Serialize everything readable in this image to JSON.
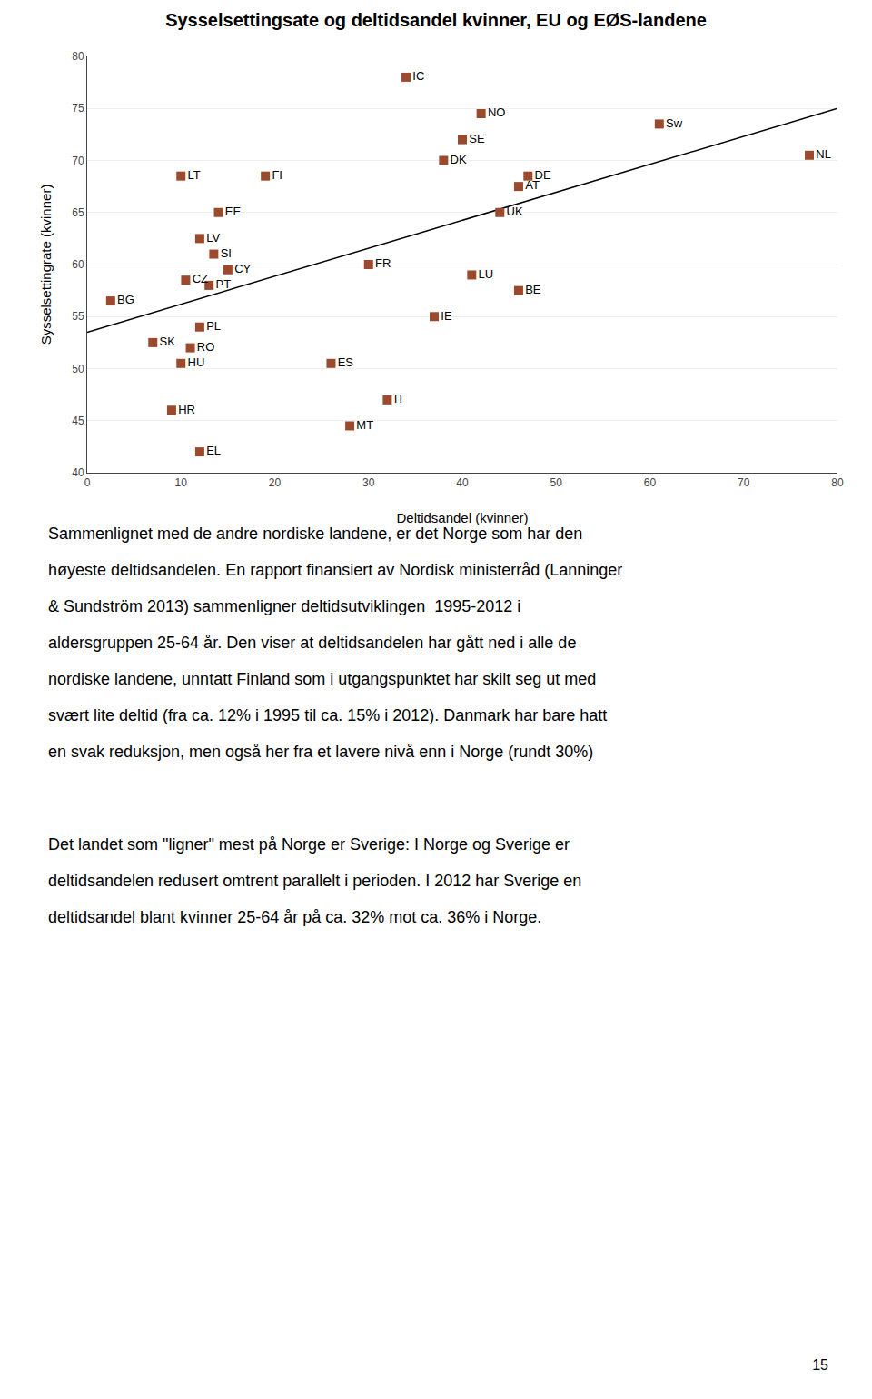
{
  "chart_data": {
    "type": "scatter",
    "title": "Sysselsettingsate og deltidsandel kvinner, EU og EØS-landene",
    "xlabel": "Deltidsandel (kvinner)",
    "ylabel": "Sysselsettingrate (kvinner)",
    "x": [
      2.5,
      7.0,
      10,
      9,
      12,
      11,
      12,
      10.5,
      13,
      12,
      13.5,
      15,
      14,
      10,
      19,
      26,
      28,
      30,
      34,
      32,
      37,
      38,
      40,
      42,
      41,
      44,
      46,
      47,
      46,
      61,
      77
    ],
    "values": [
      56.5,
      52.5,
      50.5,
      46.0,
      42.0,
      52.0,
      54.0,
      58.5,
      58.0,
      62.5,
      61.0,
      59.5,
      65.0,
      68.5,
      68.5,
      50.5,
      44.5,
      60.0,
      78.0,
      47.0,
      55.0,
      70.0,
      72.0,
      74.5,
      59.0,
      65.0,
      67.5,
      68.5,
      57.5,
      73.5,
      70.5
    ],
    "point_labels": [
      "BG",
      "SK",
      "HU",
      "HR",
      "EL",
      "RO",
      "PL",
      "CZ",
      "PT",
      "LV",
      "SI",
      "CY",
      "EE",
      "LT",
      "FI",
      "ES",
      "MT",
      "FR",
      "IC",
      "IT",
      "IE",
      "DK",
      "SE",
      "NO",
      "LU",
      "UK",
      "AT",
      "DE",
      "BE",
      "Sw",
      "NL"
    ],
    "color": "#9B4A2E",
    "marker": "square",
    "trendline": {
      "type": "line",
      "x": [
        0,
        80
      ],
      "values": [
        53.5,
        75.0
      ],
      "color": "black"
    },
    "xlim": [
      0,
      80
    ],
    "ylim": [
      40,
      80
    ],
    "xticks": [
      0,
      10,
      20,
      30,
      40,
      50,
      60,
      70,
      80
    ],
    "yticks": [
      40,
      45,
      50,
      55,
      60,
      65,
      70,
      75,
      80
    ],
    "grid": "y"
  },
  "paragraphs": [
    [
      "Sammenlignet med de andre nordiske landene, er det Norge som har den",
      "høyeste deltidsandelen. En rapport finansiert av Nordisk ministerråd (Lanninger",
      "& Sundström 2013) sammenligner deltidsutviklingen  1995-2012 i",
      "aldersgruppen 25-64 år. Den viser at deltidsandelen har gått ned i alle de",
      "nordiske landene, unntatt Finland som i utgangspunktet har skilt seg ut med",
      "svært lite deltid (fra ca. 12% i 1995 til ca. 15% i 2012). Danmark har bare hatt",
      "en svak reduksjon, men også her fra et lavere nivå enn i Norge (rundt 30%)"
    ],
    [
      "Det landet som \"ligner\" mest på Norge er Sverige: I Norge og Sverige er",
      "deltidsandelen redusert omtrent parallelt i perioden. I 2012 har Sverige en",
      "deltidsandel blant kvinner 25-64 år på ca. 32% mot ca. 36% i Norge."
    ]
  ],
  "page_number": "15"
}
